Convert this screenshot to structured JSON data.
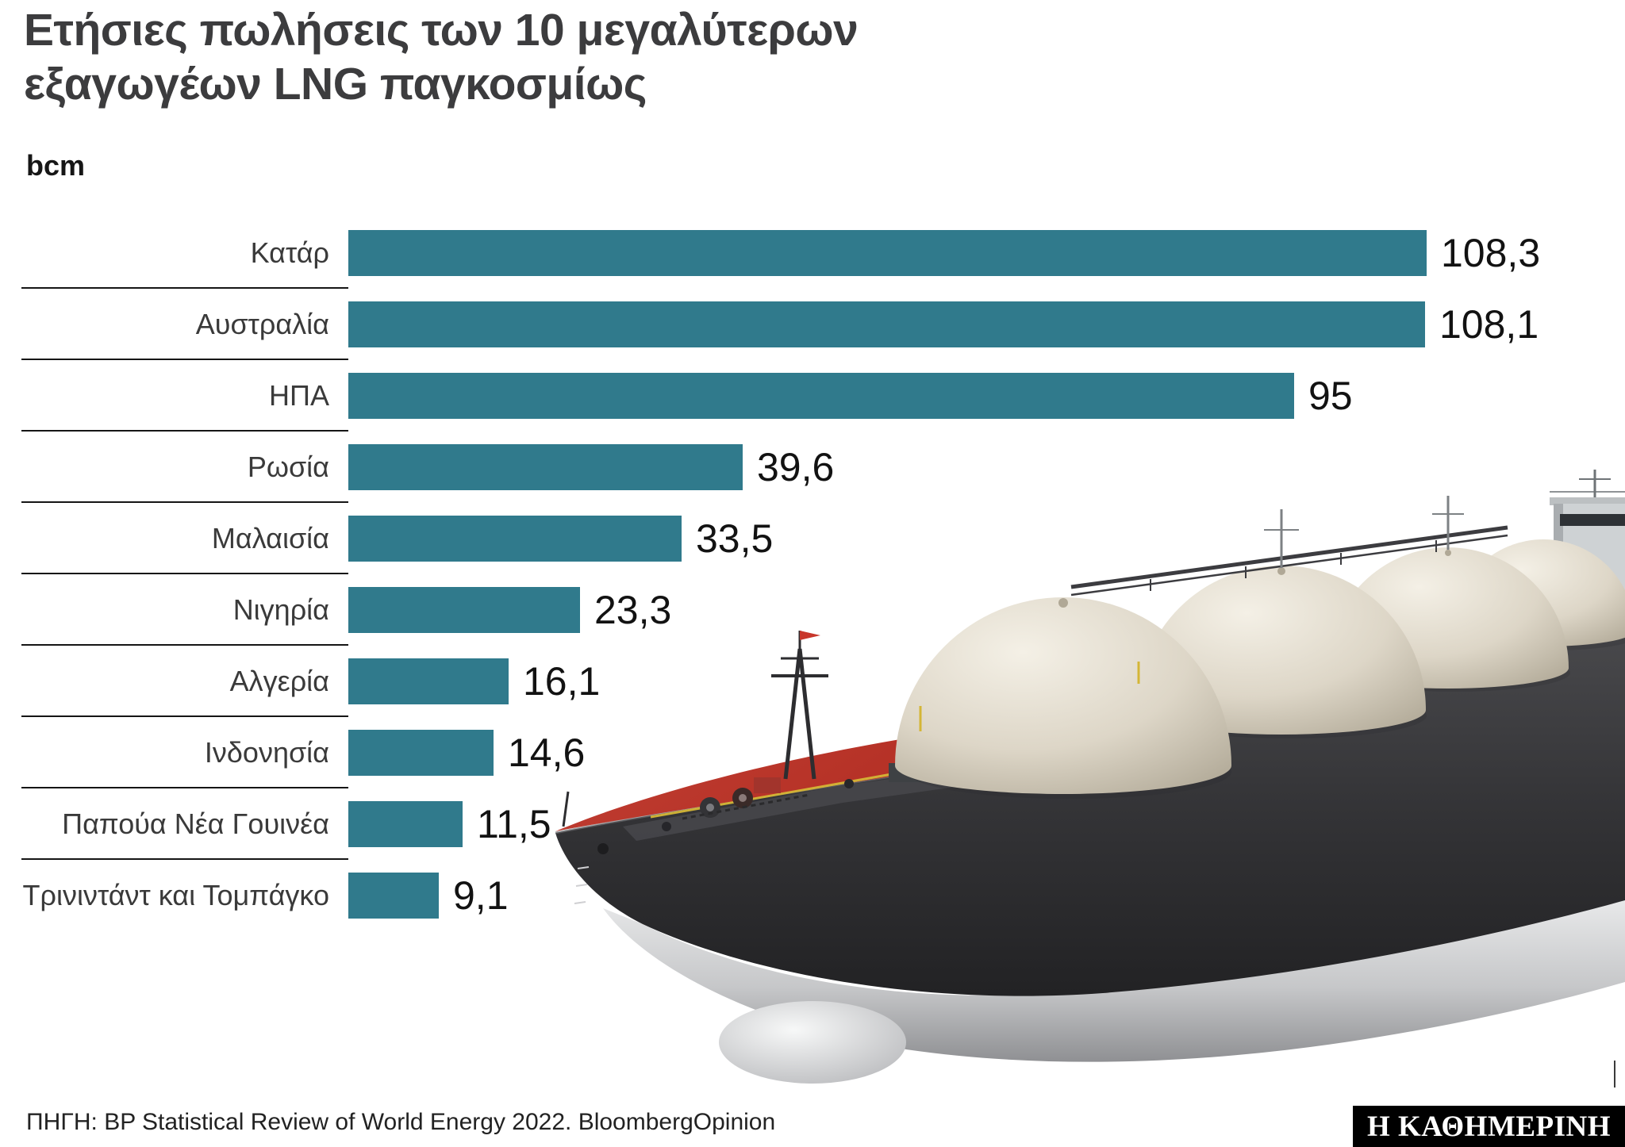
{
  "title": {
    "line1": "Ετήσιες πωλήσεις των 10 μεγαλύτερων",
    "line2": "εξαγωγέων LNG παγκοσμίως"
  },
  "unit_label": "bcm",
  "chart_data": {
    "type": "bar",
    "orientation": "horizontal",
    "title": "Ετήσιες πωλήσεις των 10 μεγαλύτερων εξαγωγέων LNG παγκοσμίως",
    "ylabel": "bcm",
    "xlabel": "",
    "xlim": [
      0,
      115
    ],
    "grid": false,
    "legend": "none",
    "bar_color": "#307a8c",
    "categories": [
      "Κατάρ",
      "Αυστραλία",
      "ΗΠΑ",
      "Ρωσία",
      "Μαλαισία",
      "Νιγηρία",
      "Αλγερία",
      "Ινδονησία",
      "Παπούα Νέα Γουινέα",
      "Τρινιντάντ και Τομπάγκο"
    ],
    "values": [
      108.3,
      108.1,
      95,
      39.6,
      33.5,
      23.3,
      16.1,
      14.6,
      11.5,
      9.1
    ],
    "value_labels": [
      "108,3",
      "108,1",
      "95",
      "39,6",
      "33,5",
      "23,3",
      "16,1",
      "14,6",
      "11,5",
      "9,1"
    ]
  },
  "illustration": {
    "name": "lng-tanker-ship",
    "hull_color": "#343437",
    "lower_hull_color": "#c6c7c9",
    "deck_color": "#b63227",
    "tank_color": "#ddd6c7",
    "accent_color": "#d4b636"
  },
  "footer": {
    "source": "ΠΗΓΗ: BP Statistical Review of World Energy 2022. BloombergOpinion",
    "brand": "Η ΚΑΘΗΜΕΡΙΝΗ"
  }
}
